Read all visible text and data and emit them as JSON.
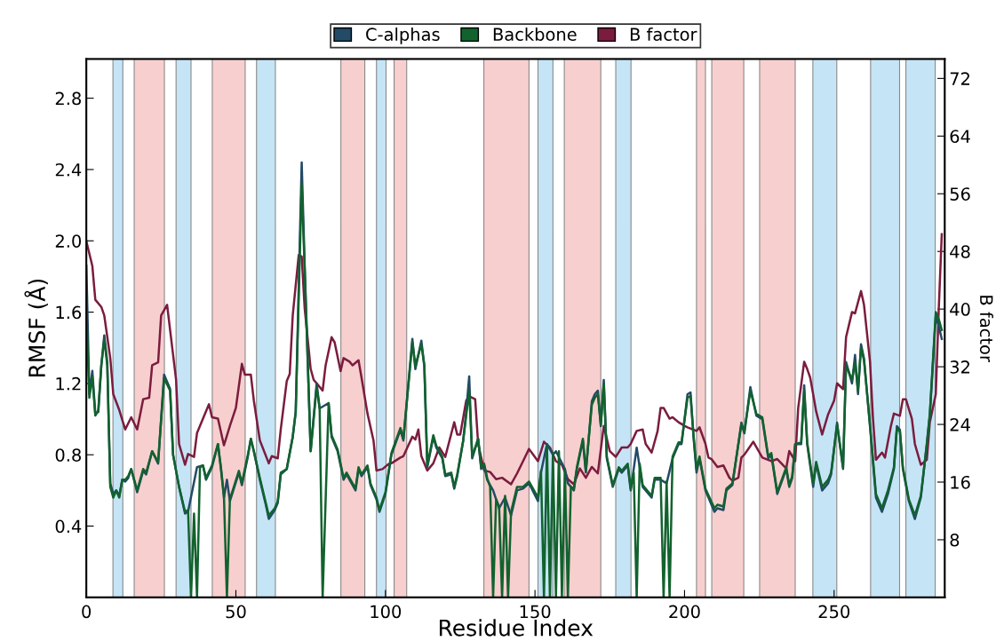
{
  "chart_data": {
    "type": "line",
    "xlabel": "Residue Index",
    "ylabel": "RMSF (Å)",
    "y2label": "B factor",
    "xlim": [
      0,
      287
    ],
    "xticks": [
      0,
      50,
      100,
      150,
      200,
      250
    ],
    "ylim": [
      0,
      3.02
    ],
    "yticks": [
      0.4,
      0.8,
      1.2,
      1.6,
      {
        "value": 2,
        "label": "2.0"
      },
      2.4,
      2.8
    ],
    "y2lim": [
      0,
      74.7
    ],
    "y2ticks": [
      8,
      16,
      24,
      32,
      40,
      48,
      56,
      64,
      72
    ],
    "grid": false,
    "legend": "top",
    "line_style": "solid",
    "marker": "none",
    "bands": [
      {
        "axis": "x",
        "from": 8.9,
        "to": 12.2,
        "color": "#c5e5f6"
      },
      {
        "axis": "x",
        "from": 16.0,
        "to": 26.1,
        "color": "#f8cfcf"
      },
      {
        "axis": "x",
        "from": 30.0,
        "to": 35.0,
        "color": "#c5e5f6"
      },
      {
        "axis": "x",
        "from": 42.1,
        "to": 53.1,
        "color": "#f8cfcf"
      },
      {
        "axis": "x",
        "from": 56.9,
        "to": 63.2,
        "color": "#c5e5f6"
      },
      {
        "axis": "x",
        "from": 85.1,
        "to": 93.1,
        "color": "#f8cfcf"
      },
      {
        "axis": "x",
        "from": 97.0,
        "to": 100.2,
        "color": "#c5e5f6"
      },
      {
        "axis": "x",
        "from": 102.9,
        "to": 107.1,
        "color": "#f8cfcf"
      },
      {
        "axis": "x",
        "from": 132.9,
        "to": 148.0,
        "color": "#f8cfcf"
      },
      {
        "axis": "x",
        "from": 151.0,
        "to": 156.0,
        "color": "#c5e5f6"
      },
      {
        "axis": "x",
        "from": 159.8,
        "to": 172.0,
        "color": "#f8cfcf"
      },
      {
        "axis": "x",
        "from": 177.0,
        "to": 182.1,
        "color": "#c5e5f6"
      },
      {
        "axis": "x",
        "from": 204.0,
        "to": 207.0,
        "color": "#f8cfcf"
      },
      {
        "axis": "x",
        "from": 209.1,
        "to": 219.8,
        "color": "#f8cfcf"
      },
      {
        "axis": "x",
        "from": 225.1,
        "to": 237.0,
        "color": "#f8cfcf"
      },
      {
        "axis": "x",
        "from": 242.9,
        "to": 250.9,
        "color": "#c5e5f6"
      },
      {
        "axis": "x",
        "from": 262.2,
        "to": 271.9,
        "color": "#c5e5f6"
      },
      {
        "axis": "x",
        "from": 274.0,
        "to": 283.8,
        "color": "#c5e5f6"
      }
    ],
    "series": [
      {
        "name": "C-alphas",
        "color": "#234a66",
        "x": [
          0,
          1,
          2,
          3,
          4,
          5,
          6,
          7,
          8,
          9,
          10,
          11,
          12,
          13,
          14,
          15,
          17,
          19,
          20,
          22,
          24,
          26,
          28,
          29,
          31,
          33,
          34,
          37,
          39,
          40,
          42,
          44,
          45,
          46,
          47,
          48,
          51,
          52,
          54,
          55,
          56,
          58,
          60,
          61,
          63,
          64,
          65,
          67,
          69,
          70,
          72,
          73,
          75,
          77,
          78,
          81,
          82,
          84,
          86,
          87,
          90,
          91,
          92,
          94,
          95,
          97,
          98,
          100,
          102,
          105,
          106,
          109,
          110,
          112,
          113,
          114,
          116,
          117,
          119,
          120,
          122,
          123,
          124,
          126,
          127,
          128,
          129,
          131,
          132,
          133,
          134,
          136,
          138,
          140,
          142,
          144,
          146,
          148,
          151,
          152,
          154,
          156,
          157,
          160,
          161,
          163,
          164,
          166,
          167,
          169,
          170,
          171,
          172,
          173,
          174,
          176,
          178,
          179,
          181,
          182,
          184,
          186,
          189,
          190,
          192,
          194,
          196,
          198,
          199,
          201,
          202,
          203,
          204,
          205,
          207,
          210,
          211,
          213,
          214,
          216,
          219,
          220,
          222,
          224,
          226,
          228,
          229,
          231,
          234,
          235,
          236,
          237,
          239,
          240,
          241,
          243,
          244,
          246,
          248,
          249,
          251,
          253,
          254,
          256,
          257,
          258,
          259,
          260,
          262,
          264,
          266,
          268,
          270,
          271,
          272,
          273,
          275,
          277,
          279,
          281,
          282,
          284,
          285,
          286
        ],
        "values": [
          1.86,
          1.14,
          1.27,
          1.03,
          1.04,
          1.3,
          1.47,
          1.32,
          0.64,
          0.58,
          0.6,
          0.57,
          0.66,
          0.65,
          0.67,
          0.72,
          0.59,
          0.71,
          0.69,
          0.82,
          0.75,
          1.25,
          1.17,
          0.8,
          0.62,
          0.47,
          0.48,
          0.73,
          0.74,
          0.66,
          0.73,
          0.86,
          0.72,
          0.56,
          0.66,
          0.54,
          0.7,
          0.63,
          0.79,
          0.89,
          0.82,
          0.66,
          0.52,
          0.44,
          0.49,
          0.53,
          0.69,
          0.72,
          0.9,
          1.04,
          2.44,
          1.86,
          0.82,
          1.2,
          1.06,
          1.09,
          0.9,
          0.82,
          0.66,
          0.69,
          0.6,
          0.72,
          0.68,
          0.73,
          0.63,
          0.55,
          0.48,
          0.58,
          0.8,
          0.94,
          0.88,
          1.45,
          1.28,
          1.44,
          1.3,
          0.73,
          0.9,
          0.84,
          0.78,
          0.68,
          0.69,
          0.61,
          0.68,
          0.88,
          1.04,
          1.24,
          0.78,
          0.89,
          0.72,
          0.74,
          0.66,
          0.6,
          0.5,
          0.56,
          0.46,
          0.6,
          0.61,
          0.64,
          0.54,
          0.7,
          0.86,
          0.8,
          0.82,
          0.72,
          0.64,
          0.6,
          0.72,
          0.88,
          0.7,
          1.1,
          1.14,
          1.16,
          0.96,
          1.22,
          0.78,
          0.62,
          0.72,
          0.7,
          0.74,
          0.6,
          0.84,
          0.62,
          0.56,
          0.66,
          0.66,
          0.64,
          0.78,
          0.86,
          0.86,
          1.14,
          1.15,
          0.9,
          0.7,
          0.78,
          0.6,
          0.48,
          0.5,
          0.49,
          0.6,
          0.63,
          0.98,
          0.92,
          1.18,
          1.02,
          1.0,
          0.78,
          0.8,
          0.58,
          0.72,
          0.62,
          0.67,
          0.86,
          0.86,
          1.19,
          0.86,
          0.62,
          0.75,
          0.6,
          0.64,
          0.69,
          0.98,
          0.72,
          1.32,
          1.2,
          1.36,
          1.14,
          1.42,
          1.34,
          0.96,
          0.56,
          0.48,
          0.58,
          0.72,
          0.96,
          0.94,
          0.72,
          0.54,
          0.44,
          0.56,
          0.86,
          1.02,
          1.58,
          1.52,
          1.45
        ]
      },
      {
        "name": "Backbone",
        "color": "#12622e",
        "x": [
          0,
          1,
          2,
          3,
          4,
          5,
          6,
          7,
          8,
          9,
          10,
          11,
          12,
          13,
          14,
          15,
          17,
          19,
          20,
          22,
          24,
          26,
          28,
          29,
          31,
          33,
          34,
          35,
          36,
          37,
          38,
          39,
          40,
          42,
          44,
          45,
          46,
          47,
          48,
          51,
          52,
          54,
          55,
          56,
          58,
          60,
          61,
          63,
          64,
          65,
          67,
          69,
          70,
          72,
          73,
          75,
          77,
          78,
          79,
          81,
          82,
          84,
          86,
          87,
          90,
          91,
          92,
          94,
          95,
          97,
          98,
          100,
          102,
          105,
          106,
          109,
          110,
          112,
          113,
          114,
          116,
          117,
          119,
          120,
          122,
          123,
          124,
          126,
          127,
          128,
          129,
          131,
          132,
          133,
          134,
          135,
          136,
          137,
          138,
          139,
          140,
          141,
          142,
          144,
          146,
          148,
          151,
          152,
          153,
          154,
          155,
          156,
          157,
          158,
          159,
          160,
          161,
          162,
          163,
          164,
          166,
          167,
          169,
          170,
          171,
          172,
          173,
          174,
          176,
          178,
          179,
          181,
          182,
          183,
          184,
          185,
          186,
          189,
          190,
          192,
          193,
          194,
          195,
          196,
          198,
          199,
          201,
          202,
          203,
          204,
          205,
          207,
          210,
          211,
          213,
          214,
          216,
          219,
          220,
          222,
          224,
          226,
          228,
          229,
          231,
          234,
          235,
          236,
          237,
          239,
          240,
          241,
          243,
          244,
          246,
          248,
          249,
          251,
          253,
          254,
          256,
          257,
          258,
          259,
          260,
          262,
          264,
          266,
          268,
          270,
          271,
          272,
          273,
          275,
          277,
          279,
          281,
          282,
          284,
          285,
          286
        ],
        "values": [
          1.62,
          1.12,
          1.24,
          1.02,
          1.05,
          1.3,
          1.45,
          1.3,
          0.62,
          0.56,
          0.6,
          0.56,
          0.66,
          0.66,
          0.68,
          0.72,
          0.6,
          0.72,
          0.7,
          0.82,
          0.76,
          1.23,
          1.16,
          0.8,
          0.62,
          0.48,
          0.49,
          0,
          0.47,
          0,
          0.73,
          0.74,
          0.67,
          0.74,
          0.86,
          0.73,
          0.57,
          0,
          0.55,
          0.71,
          0.64,
          0.8,
          0.89,
          0.82,
          0.67,
          0.53,
          0.46,
          0.5,
          0.54,
          0.7,
          0.72,
          0.9,
          1.04,
          2.32,
          1.84,
          0.82,
          1.18,
          1.06,
          0,
          1.09,
          0.91,
          0.83,
          0.67,
          0.7,
          0.61,
          0.73,
          0.69,
          0.74,
          0.64,
          0.56,
          0.49,
          0.59,
          0.81,
          0.95,
          0.89,
          1.43,
          1.3,
          1.42,
          1.3,
          0.74,
          0.91,
          0.85,
          0.79,
          0.69,
          0.7,
          0.62,
          0.69,
          0.88,
          1.02,
          1.16,
          0.79,
          0.89,
          0.73,
          0.75,
          0.67,
          0.62,
          0,
          0.55,
          0.51,
          0,
          0.57,
          0,
          0.48,
          0.62,
          0.62,
          0.65,
          0.56,
          0.71,
          0,
          0.86,
          0,
          0.81,
          0,
          0.82,
          0,
          0.72,
          0,
          0.62,
          0.61,
          0.73,
          0.89,
          0.71,
          1.08,
          1.12,
          1.14,
          0.97,
          1.2,
          0.79,
          0.63,
          0.73,
          0.71,
          0.75,
          0.61,
          0.7,
          0,
          0.75,
          0.63,
          0.57,
          0.67,
          0.67,
          0,
          0.65,
          0,
          0.79,
          0.87,
          0.87,
          1.12,
          1.13,
          0.91,
          0.72,
          0.79,
          0.61,
          0.5,
          0.52,
          0.51,
          0.61,
          0.64,
          0.97,
          0.93,
          1.16,
          1.03,
          1.01,
          0.79,
          0.81,
          0.59,
          0.73,
          0.63,
          0.68,
          0.86,
          0.87,
          1.16,
          0.87,
          0.64,
          0.76,
          0.62,
          0.66,
          0.7,
          0.97,
          0.73,
          1.3,
          1.22,
          1.32,
          1.16,
          1.4,
          1.33,
          0.97,
          0.58,
          0.5,
          0.6,
          0.73,
          0.95,
          0.93,
          0.73,
          0.55,
          0.46,
          0.57,
          0.86,
          1.03,
          1.6,
          1.56,
          1.5
        ]
      },
      {
        "name": "B factor",
        "color": "#7b1c3e",
        "axis": "y2",
        "x": [
          0,
          2,
          3,
          5,
          6,
          8,
          9,
          11,
          13,
          15,
          17,
          19,
          21,
          22,
          24,
          25,
          27,
          28,
          30,
          31,
          33,
          34,
          36,
          37,
          39,
          41,
          42,
          44,
          46,
          48,
          50,
          52,
          53,
          55,
          56,
          58,
          61,
          62,
          64,
          65,
          67,
          68,
          69,
          71,
          72,
          73,
          75,
          76,
          79,
          80,
          82,
          83,
          85,
          86,
          88,
          89,
          91,
          92,
          94,
          96,
          97,
          99,
          101,
          102,
          105,
          106,
          109,
          110,
          111,
          112,
          114,
          116,
          118,
          120,
          123,
          124,
          125,
          127,
          128,
          130,
          131,
          133,
          135,
          137,
          139,
          142,
          144,
          146,
          148,
          151,
          153,
          155,
          157,
          159,
          161,
          163,
          165,
          167,
          169,
          171,
          173,
          175,
          177,
          179,
          181,
          182,
          184,
          186,
          187,
          189,
          191,
          192,
          193,
          195,
          196,
          198,
          200,
          201,
          204,
          205,
          207,
          208,
          209,
          211,
          213,
          215,
          216,
          218,
          219,
          220,
          223,
          226,
          229,
          231,
          234,
          235,
          237,
          238,
          240,
          241,
          242,
          243,
          244,
          246,
          248,
          250,
          251,
          253,
          254,
          256,
          257,
          259,
          260,
          262,
          263,
          264,
          266,
          267,
          269,
          270,
          272,
          273,
          274,
          276,
          277,
          279,
          281,
          282,
          284,
          285,
          286
        ],
        "values": [
          49.4,
          46.0,
          41.3,
          40.3,
          39.1,
          33.2,
          28.2,
          26.0,
          23.3,
          25.0,
          23.3,
          27.5,
          27.7,
          32.2,
          32.6,
          39.1,
          40.6,
          37.1,
          30.2,
          21.3,
          18.4,
          19.9,
          19.5,
          22.8,
          24.8,
          26.8,
          25.0,
          24.8,
          21.1,
          23.8,
          26.3,
          32.4,
          30.9,
          30.9,
          27.3,
          21.8,
          18.6,
          19.6,
          19.3,
          23.3,
          30.0,
          31.0,
          39.1,
          47.5,
          47.3,
          40.1,
          31.7,
          30.2,
          28.7,
          32.2,
          36.1,
          35.4,
          31.4,
          33.2,
          32.7,
          32.2,
          32.9,
          30.5,
          25.5,
          21.8,
          17.6,
          17.8,
          18.5,
          18.6,
          19.4,
          19.6,
          22.3,
          21.9,
          23.3,
          19.6,
          17.6,
          18.6,
          20.8,
          19.5,
          24.3,
          22.6,
          22.6,
          27.3,
          27.9,
          27.5,
          21.3,
          17.6,
          17.4,
          16.4,
          16.6,
          15.7,
          17.2,
          18.9,
          20.6,
          18.9,
          21.6,
          20.8,
          18.9,
          18.4,
          16.4,
          15.7,
          17.9,
          16.6,
          18.1,
          17.2,
          23.8,
          20.3,
          19.5,
          20.8,
          20.8,
          21.3,
          23.1,
          23.3,
          21.3,
          20.1,
          23.1,
          26.3,
          26.3,
          24.8,
          25.0,
          24.3,
          23.8,
          23.6,
          23.1,
          23.6,
          21.3,
          19.4,
          19.2,
          18.1,
          18.3,
          16.6,
          16.2,
          16.6,
          19.4,
          19.8,
          21.6,
          19.4,
          18.9,
          19.2,
          17.9,
          20.3,
          18.9,
          26.3,
          32.7,
          31.7,
          30.5,
          28.2,
          25.8,
          22.6,
          25.4,
          27.3,
          29.7,
          28.9,
          36.1,
          39.6,
          39.4,
          42.5,
          40.6,
          32.7,
          24.8,
          19.1,
          20.1,
          19.4,
          23.8,
          25.5,
          25.2,
          27.5,
          27.5,
          24.8,
          21.3,
          18.4,
          19.1,
          24.3,
          28.2,
          40.1,
          50.4
        ]
      }
    ]
  }
}
